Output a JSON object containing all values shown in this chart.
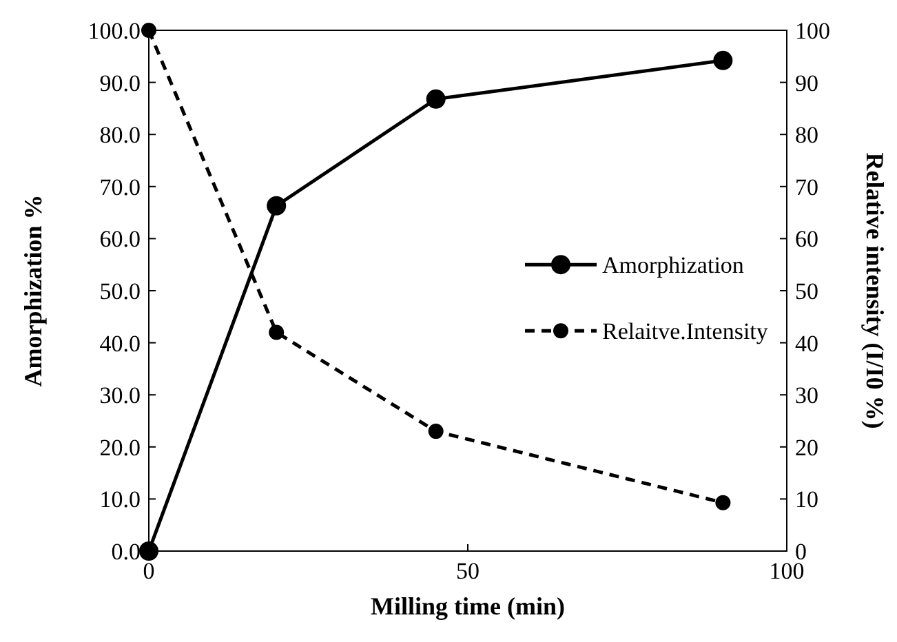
{
  "chart_data": {
    "type": "line",
    "xlabel": "Milling time (min)",
    "ylabel": "Amorphization %",
    "y2label": "Relative intensity (I/I0 %)",
    "x": [
      0,
      20,
      45,
      90
    ],
    "xlim": [
      0,
      100
    ],
    "xticks": [
      0,
      50,
      100
    ],
    "ylim": [
      0,
      100
    ],
    "yticks": [
      {
        "value": 0,
        "label": "0.0"
      },
      {
        "value": 10,
        "label": "10.0"
      },
      {
        "value": 20,
        "label": "20.0"
      },
      {
        "value": 30,
        "label": "30.0"
      },
      {
        "value": 40,
        "label": "40.0"
      },
      {
        "value": 50,
        "label": "50.0"
      },
      {
        "value": 60,
        "label": "60.0"
      },
      {
        "value": 70,
        "label": "70.0"
      },
      {
        "value": 80,
        "label": "80.0"
      },
      {
        "value": 90,
        "label": "90.0"
      },
      {
        "value": 100,
        "label": "100.0"
      }
    ],
    "y2lim": [
      0,
      100
    ],
    "y2ticks": [
      0,
      10,
      20,
      30,
      40,
      50,
      60,
      70,
      80,
      90,
      100
    ],
    "series": [
      {
        "name": "Amorphization",
        "color": "#000000",
        "values": [
          0,
          66.3,
          86.8,
          94.2
        ],
        "line_style": "solid"
      },
      {
        "name": "Relaitve.Intensity",
        "color": "#000000",
        "values": [
          100,
          42,
          23,
          9.3
        ],
        "line_style": "dashed",
        "axis": "y2"
      }
    ],
    "marker": "circle",
    "legend": "right",
    "grid": false
  }
}
